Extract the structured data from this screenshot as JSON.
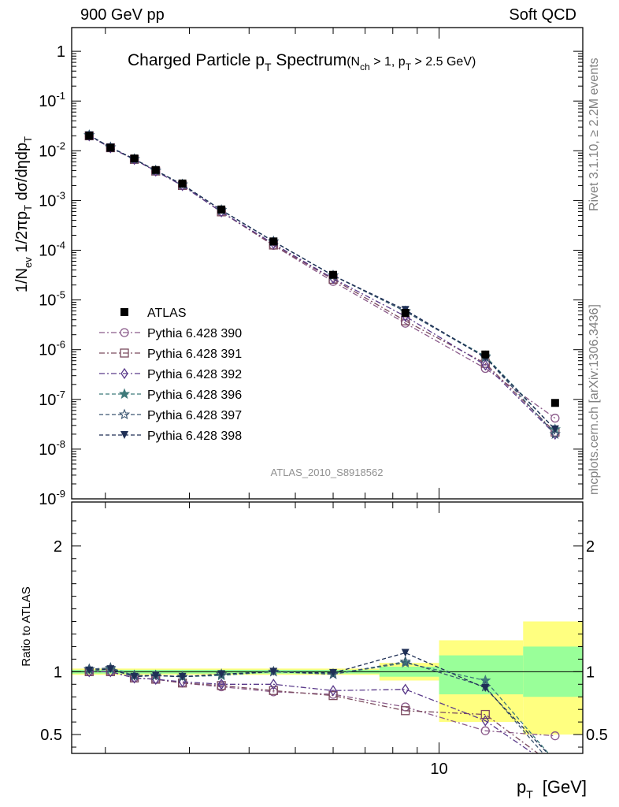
{
  "header": {
    "left": "900 GeV pp",
    "right": "Soft QCD"
  },
  "side": {
    "rivet": "Rivet 3.1.10, ≥ 2.2M events",
    "mcplots": "mcplots.cern.ch [arXiv:1306.3436]"
  },
  "chart_data": [
    {
      "type": "line",
      "title_main": "Charged Particle p",
      "title_main_sub": "T",
      "title_main_tail": " Spectrum",
      "title_cut": "(N",
      "title_cut_sub1": "ch",
      "title_cut_mid": " > 1, p",
      "title_cut_sub2": "T",
      "title_cut_tail": " > 2.5 GeV)",
      "ylabel": "1/N_ev 1/2πp_T dσ/dηdp_T",
      "analysis_id": "ATLAS_2010_S8918562",
      "log_y": true,
      "log_x": true,
      "ylim": [
        1e-09,
        3
      ],
      "xlim": [
        1.7,
        20
      ],
      "y_tick_labels": [
        "1",
        "10^-1",
        "10^-2",
        "10^-3",
        "10^-4",
        "10^-5",
        "10^-6",
        "10^-7",
        "10^-8",
        "10^-9"
      ],
      "legend_position": "left",
      "data_name": "ATLAS",
      "data_points": [
        {
          "x": 1.85,
          "y": 0.02
        },
        {
          "x": 2.05,
          "y": 0.0115
        },
        {
          "x": 2.3,
          "y": 0.007
        },
        {
          "x": 2.55,
          "y": 0.0041
        },
        {
          "x": 2.9,
          "y": 0.0022
        },
        {
          "x": 3.5,
          "y": 0.00066
        },
        {
          "x": 4.5,
          "y": 0.00015
        },
        {
          "x": 6.0,
          "y": 3.2e-05
        },
        {
          "x": 8.5,
          "y": 5.5e-06
        },
        {
          "x": 12.5,
          "y": 8e-07
        },
        {
          "x": 17.5,
          "y": 8.5e-08
        }
      ],
      "series": [
        {
          "name": "Pythia 6.428 390",
          "color": "#8a5a8a",
          "marker": "circle-open",
          "dash": "7,3,2,3",
          "y": [
            0.02,
            0.0115,
            0.0067,
            0.0039,
            0.002,
            0.00059,
            0.000125,
            2.35e-05,
            3.4e-06,
            4.2e-07,
            4.2e-08
          ]
        },
        {
          "name": "Pythia 6.428 391",
          "color": "#7a4a5e",
          "marker": "square-open",
          "dash": "7,3,2,3",
          "y": [
            0.02,
            0.0115,
            0.0067,
            0.0039,
            0.002,
            0.00059,
            0.000127,
            2.6e-05,
            3.8e-06,
            5.3e-07,
            2.2e-08
          ]
        },
        {
          "name": "Pythia 6.428 392",
          "color": "#5a3a8a",
          "marker": "diamond-open",
          "dash": "7,3,2,3",
          "y": [
            0.02,
            0.0115,
            0.0067,
            0.0039,
            0.002,
            0.00059,
            0.000135,
            2.7e-05,
            4.7e-06,
            4.9e-07,
            2e-08
          ]
        },
        {
          "name": "Pythia 6.428 396",
          "color": "#3f7a7a",
          "marker": "star-filled",
          "dash": "5,3",
          "y": [
            0.0205,
            0.0117,
            0.0068,
            0.004,
            0.0021,
            0.00064,
            0.00015,
            3.1e-05,
            5.9e-06,
            7.4e-07,
            2.5e-08
          ]
        },
        {
          "name": "Pythia 6.428 397",
          "color": "#3a5570",
          "marker": "star-open",
          "dash": "5,3",
          "y": [
            0.0205,
            0.0117,
            0.0068,
            0.004,
            0.0021,
            0.00064,
            0.00015,
            3.1e-05,
            5.9e-06,
            7e-07,
            2e-08
          ]
        },
        {
          "name": "Pythia 6.428 398",
          "color": "#1f2f55",
          "marker": "triangle-down-filled",
          "dash": "5,3",
          "y": [
            0.0205,
            0.0117,
            0.0068,
            0.004,
            0.0021,
            0.00064,
            0.00015,
            3.1e-05,
            6.3e-06,
            7e-07,
            2.5e-08
          ]
        }
      ]
    },
    {
      "type": "line",
      "ylabel": "Ratio to ATLAS",
      "xlabel_main": "p",
      "xlabel_sub": "T",
      "xlabel_unit": "[GeV]",
      "ylim": [
        0.35,
        2.35
      ],
      "log_x": true,
      "y_ticks": [
        0.5,
        1,
        2
      ],
      "y_tick_labels": [
        "0.5",
        "1",
        "2"
      ],
      "x_ticks_labeled": [
        10
      ],
      "x_tick_labels": [
        "10"
      ],
      "uncertainty_bands": [
        {
          "x0": 1.7,
          "x1": 7.5,
          "yellow": [
            0.975,
            1.025
          ],
          "green": [
            0.985,
            1.015
          ]
        },
        {
          "x0": 7.5,
          "x1": 10.0,
          "yellow": [
            0.93,
            1.07
          ],
          "green": [
            0.96,
            1.04
          ]
        },
        {
          "x0": 10.0,
          "x1": 15.0,
          "yellow": [
            0.6,
            1.25
          ],
          "green": [
            0.82,
            1.13
          ]
        },
        {
          "x0": 15.0,
          "x1": 20.0,
          "yellow": [
            0.5,
            1.4
          ],
          "green": [
            0.8,
            1.2
          ]
        }
      ],
      "x": [
        1.85,
        2.05,
        2.3,
        2.55,
        2.9,
        3.5,
        4.5,
        6.0,
        8.5,
        12.5,
        17.5
      ],
      "series": [
        {
          "name": "Pythia 6.428 390",
          "y": [
            1.0,
            1.0,
            0.95,
            0.94,
            0.91,
            0.88,
            0.84,
            0.82,
            0.72,
            0.53,
            0.49
          ]
        },
        {
          "name": "Pythia 6.428 391",
          "y": [
            1.0,
            1.0,
            0.95,
            0.94,
            0.91,
            0.89,
            0.85,
            0.81,
            0.69,
            0.66,
            0.25
          ]
        },
        {
          "name": "Pythia 6.428 392",
          "y": [
            1.0,
            1.0,
            0.95,
            0.94,
            0.92,
            0.9,
            0.9,
            0.85,
            0.86,
            0.61,
            0.23
          ]
        },
        {
          "name": "Pythia 6.428 396",
          "y": [
            1.02,
            1.02,
            0.97,
            0.97,
            0.96,
            0.97,
            1.0,
            0.98,
            1.07,
            0.93,
            0.29
          ]
        },
        {
          "name": "Pythia 6.428 397",
          "y": [
            1.02,
            1.03,
            0.97,
            0.97,
            0.96,
            0.98,
            1.0,
            0.98,
            1.08,
            0.88,
            0.24
          ]
        },
        {
          "name": "Pythia 6.428 398",
          "y": [
            1.01,
            1.02,
            0.96,
            0.97,
            0.96,
            0.98,
            1.0,
            0.99,
            1.15,
            0.87,
            0.29
          ]
        }
      ]
    }
  ]
}
